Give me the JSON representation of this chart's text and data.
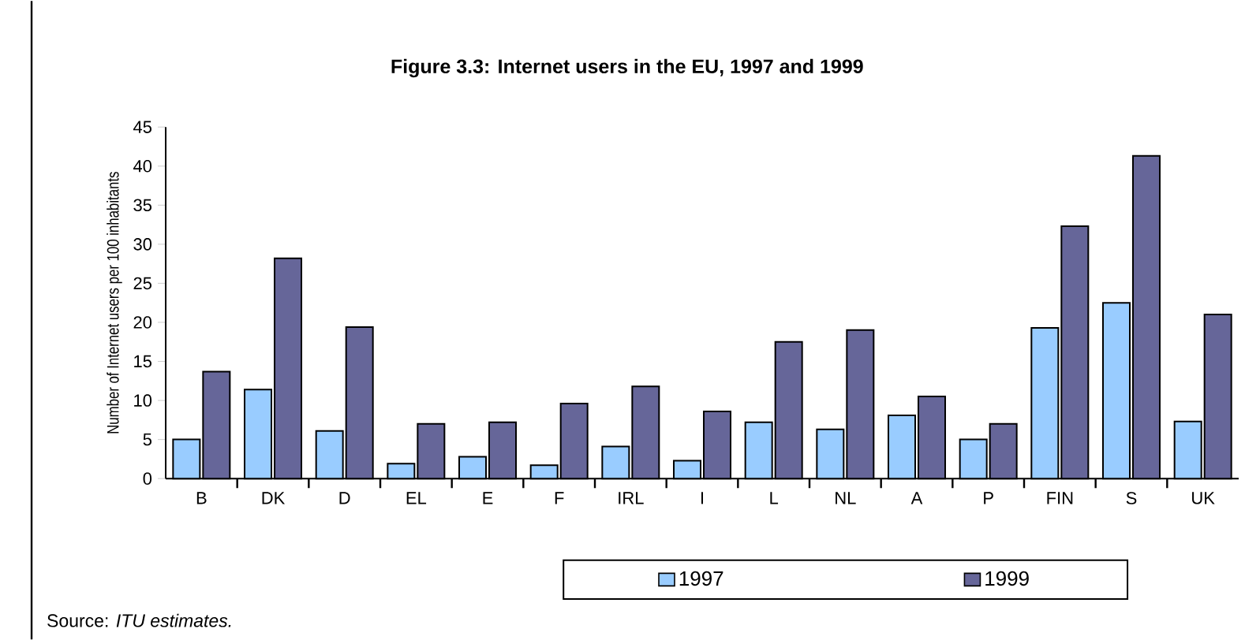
{
  "chart_data": {
    "type": "bar",
    "title": "Figure 3.3: Internet users in the EU, 1997 and 1999",
    "ylabel": "Number of Internet users per 100 inhabitants",
    "categories": [
      "B",
      "DK",
      "D",
      "EL",
      "E",
      "F",
      "IRL",
      "I",
      "L",
      "NL",
      "A",
      "P",
      "FIN",
      "S",
      "UK"
    ],
    "series": [
      {
        "name": "1997",
        "color": "#99ccff",
        "values": [
          5.0,
          11.4,
          6.1,
          1.9,
          2.8,
          1.7,
          4.1,
          2.3,
          7.2,
          6.3,
          8.1,
          5.0,
          19.3,
          22.5,
          7.3
        ]
      },
      {
        "name": "1999",
        "color": "#666699",
        "values": [
          13.7,
          28.2,
          19.4,
          7.0,
          7.2,
          9.6,
          11.8,
          8.6,
          17.5,
          19.0,
          10.5,
          7.0,
          32.3,
          41.3,
          21.0
        ]
      }
    ],
    "ylim": [
      0,
      45
    ],
    "yticks": [
      0,
      5,
      10,
      15,
      20,
      25,
      30,
      35,
      40,
      45
    ],
    "grid": false,
    "legend": "bottom right",
    "annotations": [
      "Source: *ITU estimates.*"
    ]
  }
}
